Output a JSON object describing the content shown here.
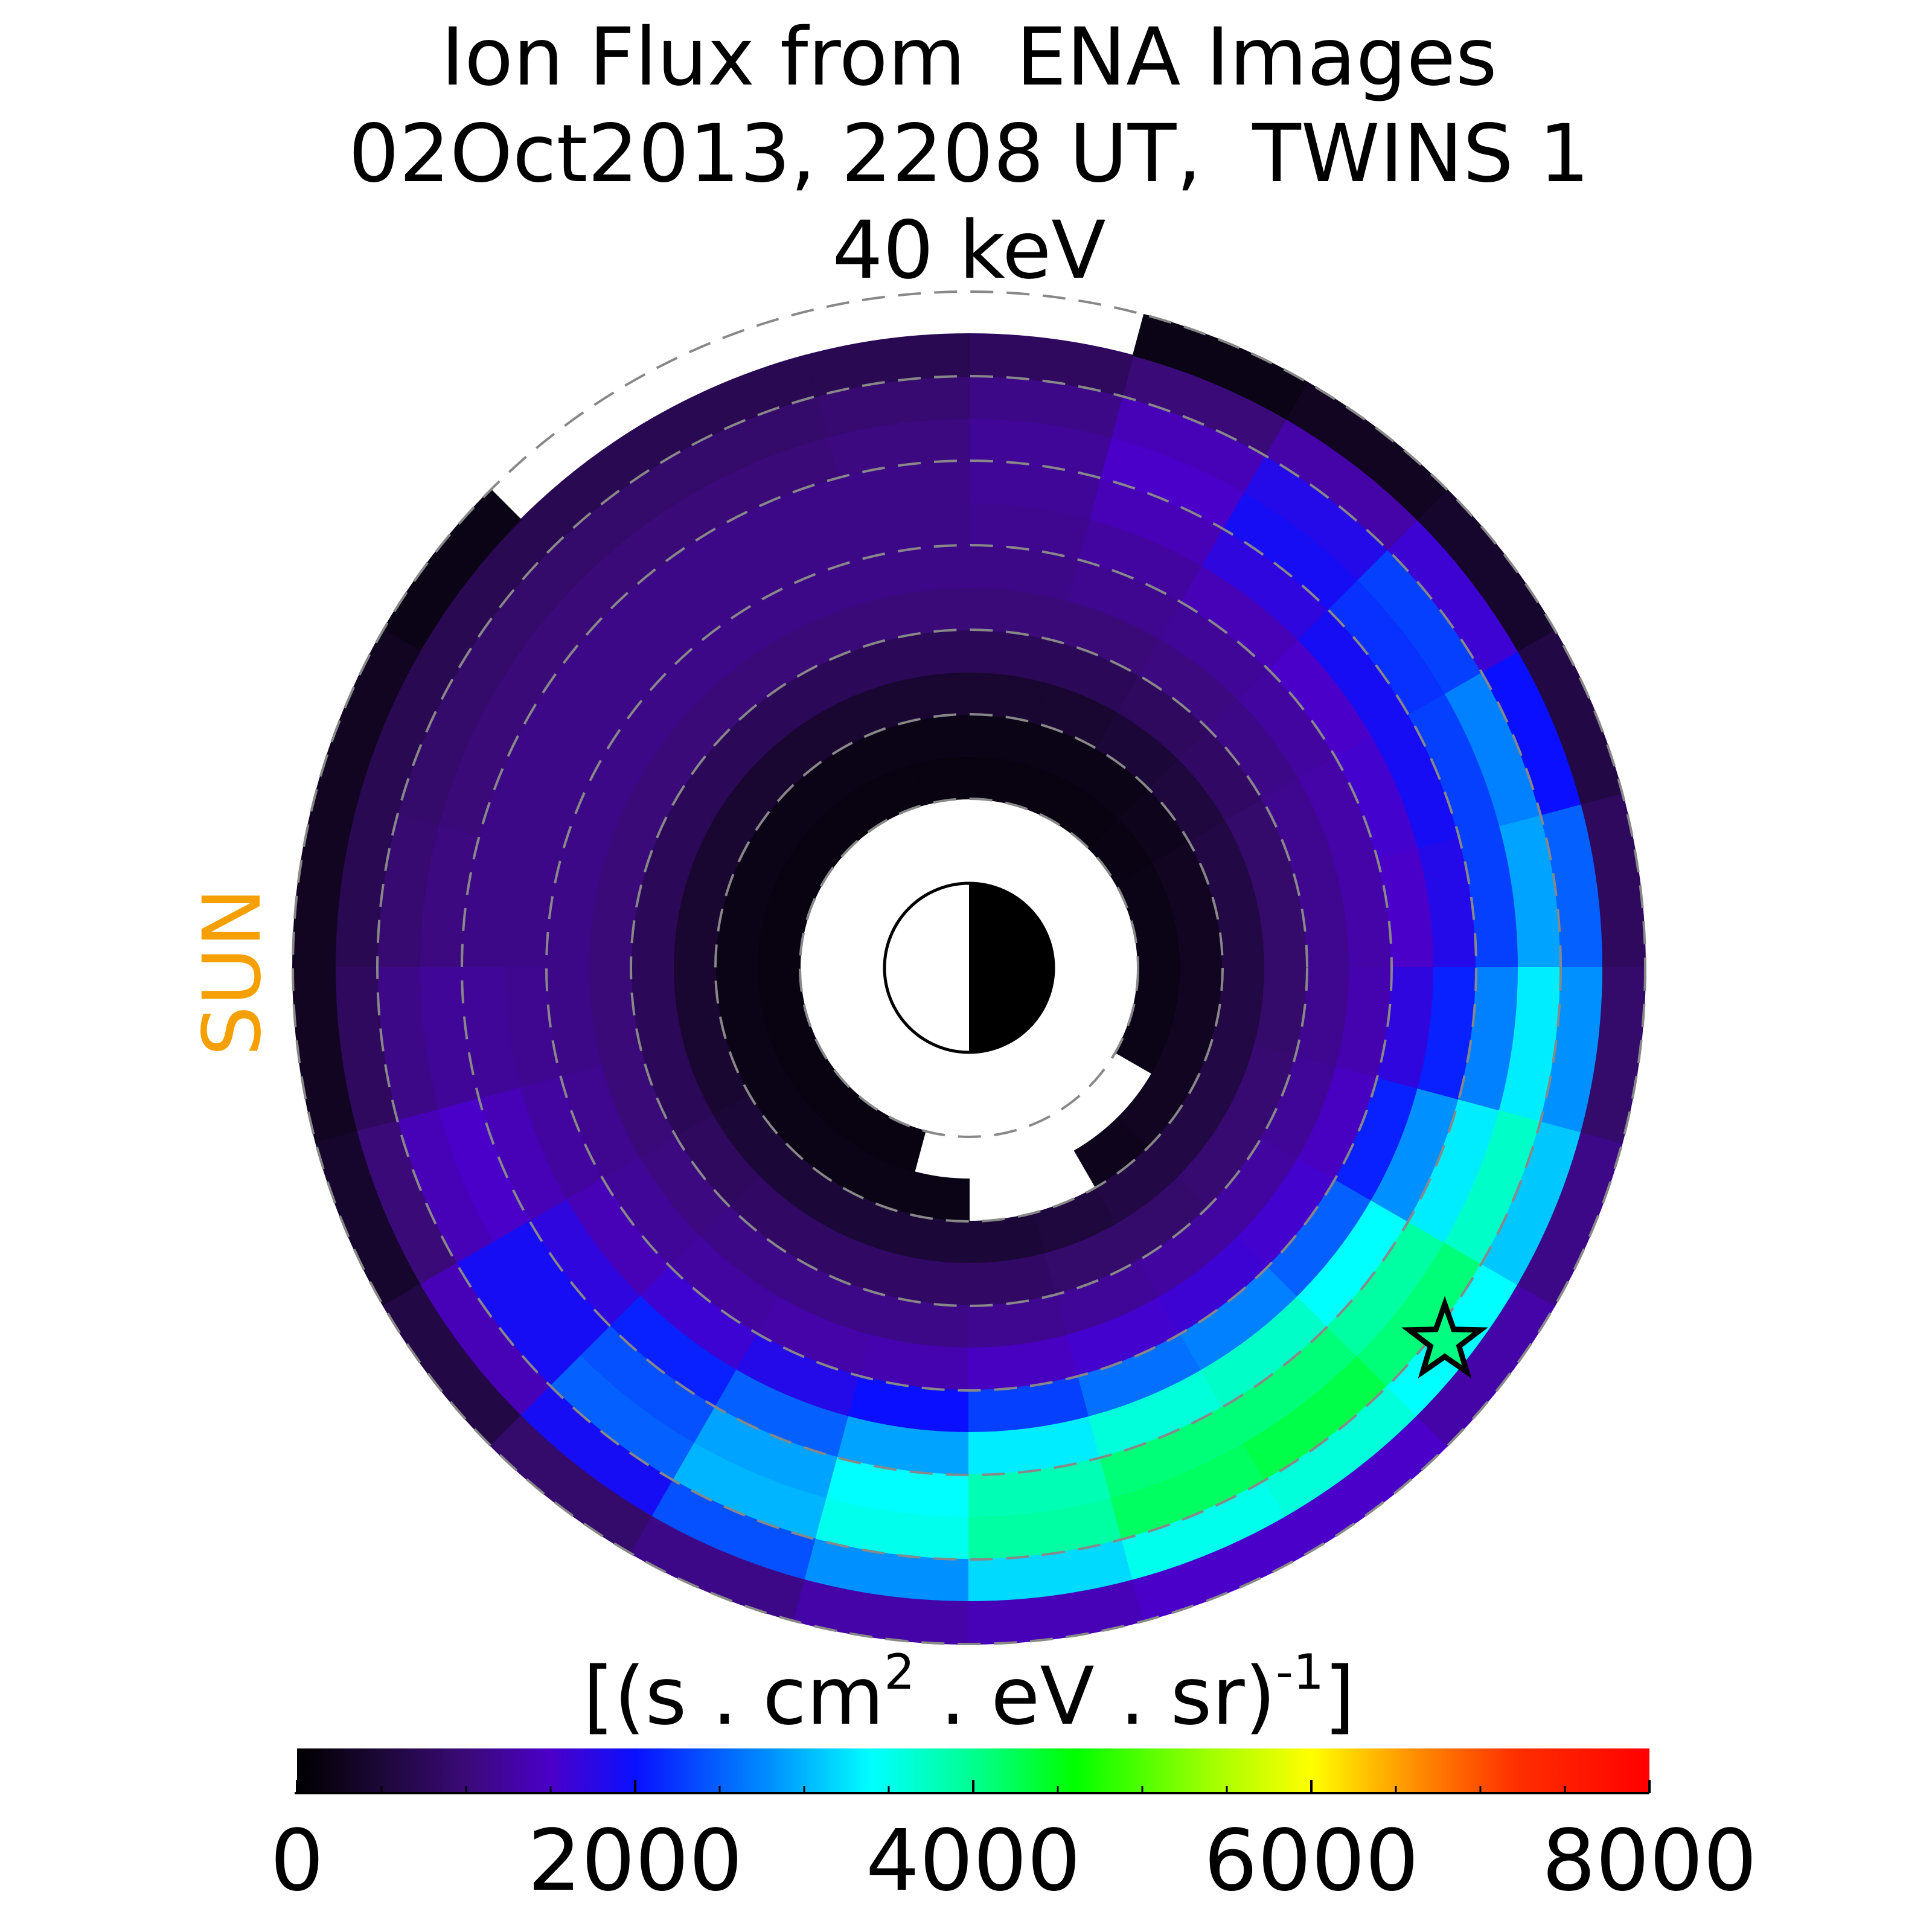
{
  "chart_data": {
    "type": "polar-heatmap",
    "title": [
      "Ion Flux from  ENA Images",
      "02Oct2013, 2208 UT,  TWINS 1",
      "40 keV"
    ],
    "annotation": "SUN",
    "annotation_color": "#f5a000",
    "r_edges": [
      2,
      2.5,
      3,
      3.5,
      4,
      4.5,
      5,
      5.5,
      6,
      6.5,
      7,
      7.5,
      8
    ],
    "mlt_edges": [
      0,
      1,
      2,
      3,
      4,
      5,
      6,
      7,
      8,
      9,
      10,
      11,
      12,
      13,
      14,
      15,
      16,
      17,
      18,
      19,
      20,
      21,
      22,
      23,
      24
    ],
    "values": [
      [
        200,
        200,
        180,
        150,
        150,
        150,
        150,
        150,
        150,
        150,
        150,
        150,
        150,
        150,
        150,
        150,
        150,
        null,
        null,
        null,
        null,
        null,
        200,
        200
      ],
      [
        300,
        300,
        250,
        200,
        200,
        200,
        200,
        200,
        200,
        200,
        200,
        200,
        200,
        200,
        200,
        200,
        200,
        200,
        null,
        null,
        250,
        300,
        300,
        300
      ],
      [
        600,
        600,
        550,
        500,
        450,
        450,
        450,
        450,
        450,
        450,
        450,
        450,
        450,
        450,
        500,
        500,
        500,
        500,
        500,
        550,
        600,
        600,
        600,
        600
      ],
      [
        900,
        900,
        850,
        800,
        750,
        750,
        750,
        750,
        750,
        750,
        750,
        750,
        750,
        750,
        800,
        850,
        850,
        850,
        850,
        900,
        900,
        950,
        950,
        900
      ],
      [
        1150,
        1150,
        1100,
        1050,
        1000,
        1000,
        1000,
        1000,
        1000,
        1000,
        1000,
        1000,
        1000,
        1000,
        1050,
        1100,
        1100,
        1100,
        1150,
        1200,
        1250,
        1250,
        1200,
        1150
      ],
      [
        1300,
        1300,
        1250,
        1200,
        1150,
        1100,
        1100,
        1100,
        1100,
        1100,
        1100,
        1100,
        1100,
        1150,
        1200,
        1250,
        1300,
        1350,
        1450,
        1550,
        1600,
        1550,
        1450,
        1350
      ],
      [
        1500,
        1550,
        1500,
        1400,
        1250,
        1150,
        1100,
        1100,
        1100,
        1100,
        1100,
        1100,
        1150,
        1250,
        1400,
        1600,
        1800,
        2000,
        2300,
        2600,
        2700,
        2500,
        2100,
        1700
      ],
      [
        1800,
        1900,
        1900,
        1700,
        1400,
        1200,
        1100,
        1100,
        1100,
        1100,
        1100,
        1100,
        1200,
        1400,
        1700,
        2100,
        2500,
        2900,
        3300,
        3600,
        3700,
        3400,
        2800,
        2100
      ],
      [
        2300,
        2300,
        2200,
        1900,
        1500,
        1200,
        1050,
        1000,
        1000,
        1000,
        1000,
        1050,
        1200,
        1500,
        1900,
        2400,
        2900,
        3400,
        3800,
        4100,
        4100,
        3900,
        3300,
        2700
      ],
      [
        2900,
        2700,
        2300,
        1800,
        1400,
        1100,
        950,
        900,
        900,
        900,
        900,
        950,
        1100,
        1400,
        1900,
        2500,
        3000,
        3500,
        3900,
        4200,
        4300,
        4100,
        3700,
        3300
      ],
      [
        2500,
        2000,
        1600,
        1300,
        1000,
        800,
        700,
        700,
        700,
        700,
        700,
        700,
        800,
        1000,
        1400,
        1900,
        2400,
        2800,
        3200,
        3500,
        3600,
        3400,
        3100,
        2800
      ],
      [
        800,
        600,
        400,
        300,
        200,
        null,
        null,
        null,
        null,
        200,
        300,
        300,
        300,
        400,
        600,
        900,
        1100,
        1300,
        1400,
        1500,
        1500,
        1300,
        1100,
        900
      ]
    ],
    "grid_rings": [
      2,
      3,
      4,
      5,
      6,
      7,
      8
    ],
    "clim": [
      0,
      8000
    ],
    "colormap": [
      {
        "value": 0,
        "color": "#000000"
      },
      {
        "value": 500,
        "color": "#1c0838"
      },
      {
        "value": 1000,
        "color": "#3a0a78"
      },
      {
        "value": 1500,
        "color": "#4a00c8"
      },
      {
        "value": 2000,
        "color": "#0a10ff"
      },
      {
        "value": 2800,
        "color": "#0090ff"
      },
      {
        "value": 3400,
        "color": "#00ffff"
      },
      {
        "value": 4000,
        "color": "#00ff90"
      },
      {
        "value": 4600,
        "color": "#00ff00"
      },
      {
        "value": 5400,
        "color": "#a0ff00"
      },
      {
        "value": 6000,
        "color": "#ffff00"
      },
      {
        "value": 6600,
        "color": "#ff9000"
      },
      {
        "value": 7200,
        "color": "#ff3000"
      },
      {
        "value": 8000,
        "color": "#ff0000"
      }
    ],
    "colorbar_label": [
      {
        "text": "[(s . cm",
        "sup": false
      },
      {
        "text": "2",
        "sup": true
      },
      {
        "text": " . eV . sr)",
        "sup": false
      },
      {
        "text": "-1",
        "sup": true
      },
      {
        "text": "]",
        "sup": false
      }
    ],
    "colorbar_ticks": [
      0,
      2000,
      4000,
      6000,
      8000
    ],
    "colorbar_minor_ticks": [
      500,
      1000,
      1500,
      2500,
      3000,
      3500,
      4500,
      5000,
      5500,
      6500,
      7000,
      7500
    ]
  }
}
